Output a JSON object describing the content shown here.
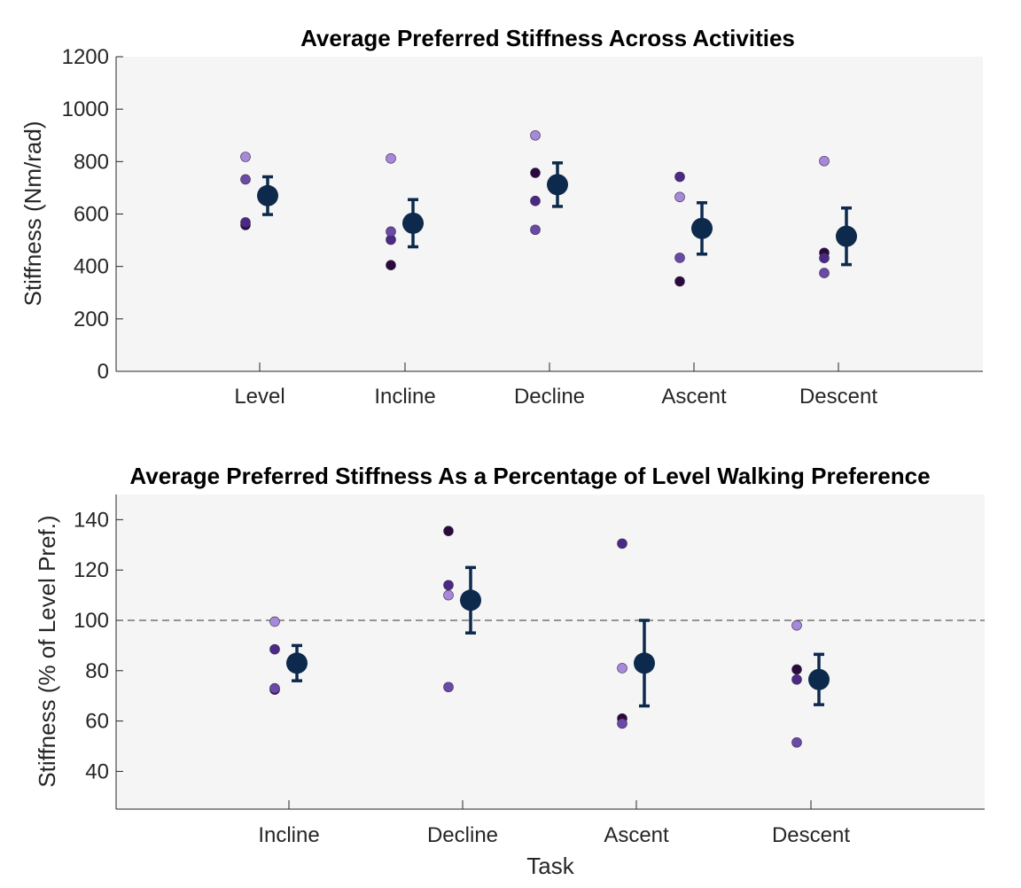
{
  "chart_data": [
    {
      "type": "scatter",
      "title": "Average Preferred Stiffness Across Activities",
      "xlabel": "",
      "ylabel": "Stiffness (Nm/rad)",
      "ylim": [
        0,
        1200
      ],
      "yticks": [
        0,
        200,
        400,
        600,
        800,
        1000,
        1200
      ],
      "categories": [
        "Level",
        "Incline",
        "Decline",
        "Ascent",
        "Descent"
      ],
      "grid": false,
      "reference_line": null,
      "subjects": [
        {
          "color": "#2a0a3a",
          "values": [
            558,
            405,
            757,
            343,
            452
          ]
        },
        {
          "color": "#4a2a84",
          "values": [
            568,
            502,
            650,
            742,
            432
          ]
        },
        {
          "color": "#6a4aa6",
          "values": [
            732,
            533,
            540,
            433,
            375
          ]
        },
        {
          "color": "#a68ad8",
          "values": [
            818,
            812,
            900,
            665,
            802
          ]
        }
      ],
      "mean": {
        "color": "#0d2a4c",
        "values": [
          670,
          565,
          712,
          545,
          515
        ]
      },
      "error": [
        72,
        90,
        83,
        98,
        108
      ]
    },
    {
      "type": "scatter",
      "title": "Average Preferred Stiffness As a Percentage of Level Walking Preference",
      "xlabel": "Task",
      "ylabel": "Stiffness (% of Level Pref.)",
      "ylim": [
        25,
        150
      ],
      "yticks": [
        40,
        60,
        80,
        100,
        120,
        140
      ],
      "categories": [
        "Incline",
        "Decline",
        "Ascent",
        "Descent"
      ],
      "grid": false,
      "reference_line": 100,
      "subjects": [
        {
          "color": "#2a0a3a",
          "values": [
            72.5,
            135.5,
            61,
            80.5
          ]
        },
        {
          "color": "#4a2a84",
          "values": [
            88.5,
            114,
            130.5,
            76.5
          ]
        },
        {
          "color": "#6a4aa6",
          "values": [
            73,
            73.5,
            59,
            51.5
          ]
        },
        {
          "color": "#a68ad8",
          "values": [
            99.5,
            110,
            81,
            98
          ]
        }
      ],
      "mean": {
        "color": "#0d2a4c",
        "values": [
          83,
          108,
          83,
          76.5
        ]
      },
      "error": [
        7,
        13,
        17,
        10
      ]
    }
  ]
}
